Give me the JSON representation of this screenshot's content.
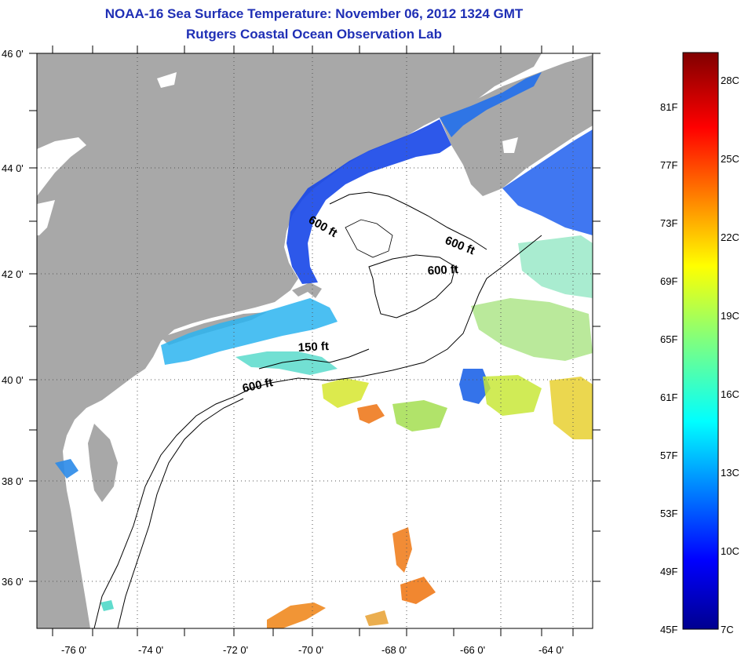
{
  "title_line1": "NOAA-16 Sea Surface Temperature:  November 06, 2012 1324 GMT",
  "title_line2": "Rutgers Coastal Ocean Observation Lab",
  "lat_labels": [
    "46 0'",
    "44 0'",
    "42 0'",
    "40 0'",
    "38 0'",
    "36 0'"
  ],
  "lon_labels": [
    "-76 0'",
    "-74 0'",
    "-72 0'",
    "-70 0'",
    "-68 0'",
    "-66 0'",
    "-64 0'"
  ],
  "contours": [
    {
      "label": "600 ft"
    },
    {
      "label": "600 ft"
    },
    {
      "label": "600 ft"
    },
    {
      "label": "150 ft"
    },
    {
      "label": "600 ft"
    }
  ],
  "colorbar": {
    "fahrenheit": [
      "81F",
      "77F",
      "73F",
      "69F",
      "65F",
      "61F",
      "57F",
      "53F",
      "49F",
      "45F"
    ],
    "celsius": [
      "28C",
      "25C",
      "22C",
      "19C",
      "16C",
      "13C",
      "10C",
      "7C"
    ]
  },
  "colors": {
    "title": "#1f2fb5",
    "land": "#a8a8a8",
    "cloud": "#ffffff"
  }
}
